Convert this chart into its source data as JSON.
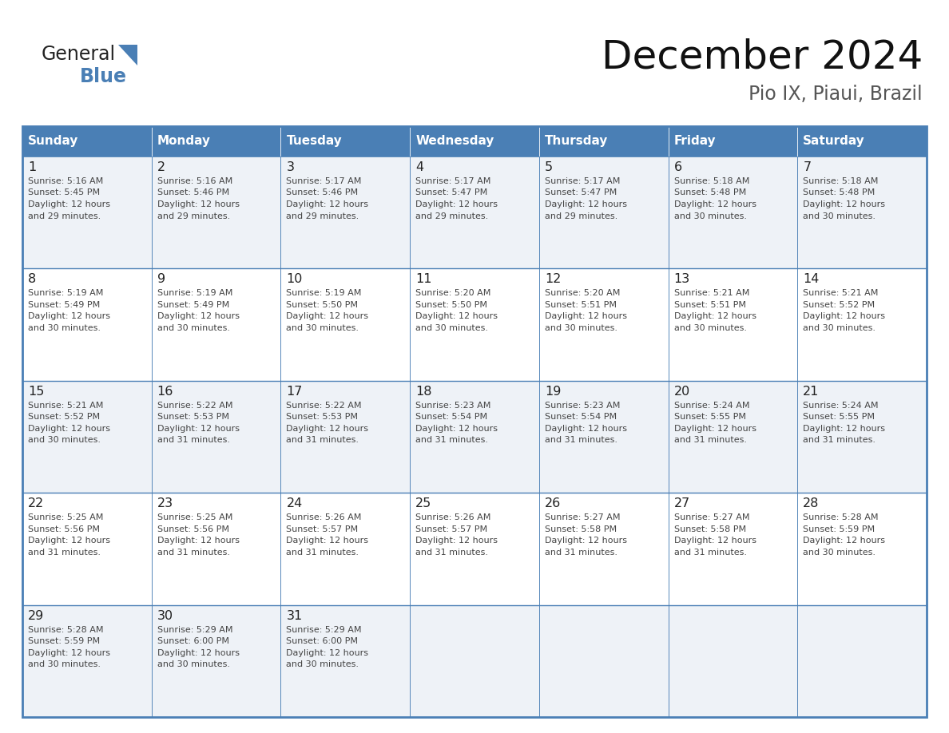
{
  "title": "December 2024",
  "subtitle": "Pio IX, Piaui, Brazil",
  "days_of_week": [
    "Sunday",
    "Monday",
    "Tuesday",
    "Wednesday",
    "Thursday",
    "Friday",
    "Saturday"
  ],
  "header_bg": "#4a7fb5",
  "header_text": "#ffffff",
  "border_color": "#4a7fb5",
  "cell_bg_even": "#eef2f7",
  "cell_bg_odd": "#ffffff",
  "day_number_color": "#222222",
  "cell_text_color": "#444444",
  "title_color": "#111111",
  "subtitle_color": "#555555",
  "logo_general_color": "#222222",
  "logo_blue_color": "#4a7fb5",
  "logo_triangle_color": "#4a7fb5",
  "calendar_data": [
    [
      {
        "day": 1,
        "sunrise": "5:16 AM",
        "sunset": "5:45 PM",
        "daylight_line1": "Daylight: 12 hours",
        "daylight_line2": "and 29 minutes."
      },
      {
        "day": 2,
        "sunrise": "5:16 AM",
        "sunset": "5:46 PM",
        "daylight_line1": "Daylight: 12 hours",
        "daylight_line2": "and 29 minutes."
      },
      {
        "day": 3,
        "sunrise": "5:17 AM",
        "sunset": "5:46 PM",
        "daylight_line1": "Daylight: 12 hours",
        "daylight_line2": "and 29 minutes."
      },
      {
        "day": 4,
        "sunrise": "5:17 AM",
        "sunset": "5:47 PM",
        "daylight_line1": "Daylight: 12 hours",
        "daylight_line2": "and 29 minutes."
      },
      {
        "day": 5,
        "sunrise": "5:17 AM",
        "sunset": "5:47 PM",
        "daylight_line1": "Daylight: 12 hours",
        "daylight_line2": "and 29 minutes."
      },
      {
        "day": 6,
        "sunrise": "5:18 AM",
        "sunset": "5:48 PM",
        "daylight_line1": "Daylight: 12 hours",
        "daylight_line2": "and 30 minutes."
      },
      {
        "day": 7,
        "sunrise": "5:18 AM",
        "sunset": "5:48 PM",
        "daylight_line1": "Daylight: 12 hours",
        "daylight_line2": "and 30 minutes."
      }
    ],
    [
      {
        "day": 8,
        "sunrise": "5:19 AM",
        "sunset": "5:49 PM",
        "daylight_line1": "Daylight: 12 hours",
        "daylight_line2": "and 30 minutes."
      },
      {
        "day": 9,
        "sunrise": "5:19 AM",
        "sunset": "5:49 PM",
        "daylight_line1": "Daylight: 12 hours",
        "daylight_line2": "and 30 minutes."
      },
      {
        "day": 10,
        "sunrise": "5:19 AM",
        "sunset": "5:50 PM",
        "daylight_line1": "Daylight: 12 hours",
        "daylight_line2": "and 30 minutes."
      },
      {
        "day": 11,
        "sunrise": "5:20 AM",
        "sunset": "5:50 PM",
        "daylight_line1": "Daylight: 12 hours",
        "daylight_line2": "and 30 minutes."
      },
      {
        "day": 12,
        "sunrise": "5:20 AM",
        "sunset": "5:51 PM",
        "daylight_line1": "Daylight: 12 hours",
        "daylight_line2": "and 30 minutes."
      },
      {
        "day": 13,
        "sunrise": "5:21 AM",
        "sunset": "5:51 PM",
        "daylight_line1": "Daylight: 12 hours",
        "daylight_line2": "and 30 minutes."
      },
      {
        "day": 14,
        "sunrise": "5:21 AM",
        "sunset": "5:52 PM",
        "daylight_line1": "Daylight: 12 hours",
        "daylight_line2": "and 30 minutes."
      }
    ],
    [
      {
        "day": 15,
        "sunrise": "5:21 AM",
        "sunset": "5:52 PM",
        "daylight_line1": "Daylight: 12 hours",
        "daylight_line2": "and 30 minutes."
      },
      {
        "day": 16,
        "sunrise": "5:22 AM",
        "sunset": "5:53 PM",
        "daylight_line1": "Daylight: 12 hours",
        "daylight_line2": "and 31 minutes."
      },
      {
        "day": 17,
        "sunrise": "5:22 AM",
        "sunset": "5:53 PM",
        "daylight_line1": "Daylight: 12 hours",
        "daylight_line2": "and 31 minutes."
      },
      {
        "day": 18,
        "sunrise": "5:23 AM",
        "sunset": "5:54 PM",
        "daylight_line1": "Daylight: 12 hours",
        "daylight_line2": "and 31 minutes."
      },
      {
        "day": 19,
        "sunrise": "5:23 AM",
        "sunset": "5:54 PM",
        "daylight_line1": "Daylight: 12 hours",
        "daylight_line2": "and 31 minutes."
      },
      {
        "day": 20,
        "sunrise": "5:24 AM",
        "sunset": "5:55 PM",
        "daylight_line1": "Daylight: 12 hours",
        "daylight_line2": "and 31 minutes."
      },
      {
        "day": 21,
        "sunrise": "5:24 AM",
        "sunset": "5:55 PM",
        "daylight_line1": "Daylight: 12 hours",
        "daylight_line2": "and 31 minutes."
      }
    ],
    [
      {
        "day": 22,
        "sunrise": "5:25 AM",
        "sunset": "5:56 PM",
        "daylight_line1": "Daylight: 12 hours",
        "daylight_line2": "and 31 minutes."
      },
      {
        "day": 23,
        "sunrise": "5:25 AM",
        "sunset": "5:56 PM",
        "daylight_line1": "Daylight: 12 hours",
        "daylight_line2": "and 31 minutes."
      },
      {
        "day": 24,
        "sunrise": "5:26 AM",
        "sunset": "5:57 PM",
        "daylight_line1": "Daylight: 12 hours",
        "daylight_line2": "and 31 minutes."
      },
      {
        "day": 25,
        "sunrise": "5:26 AM",
        "sunset": "5:57 PM",
        "daylight_line1": "Daylight: 12 hours",
        "daylight_line2": "and 31 minutes."
      },
      {
        "day": 26,
        "sunrise": "5:27 AM",
        "sunset": "5:58 PM",
        "daylight_line1": "Daylight: 12 hours",
        "daylight_line2": "and 31 minutes."
      },
      {
        "day": 27,
        "sunrise": "5:27 AM",
        "sunset": "5:58 PM",
        "daylight_line1": "Daylight: 12 hours",
        "daylight_line2": "and 31 minutes."
      },
      {
        "day": 28,
        "sunrise": "5:28 AM",
        "sunset": "5:59 PM",
        "daylight_line1": "Daylight: 12 hours",
        "daylight_line2": "and 30 minutes."
      }
    ],
    [
      {
        "day": 29,
        "sunrise": "5:28 AM",
        "sunset": "5:59 PM",
        "daylight_line1": "Daylight: 12 hours",
        "daylight_line2": "and 30 minutes."
      },
      {
        "day": 30,
        "sunrise": "5:29 AM",
        "sunset": "6:00 PM",
        "daylight_line1": "Daylight: 12 hours",
        "daylight_line2": "and 30 minutes."
      },
      {
        "day": 31,
        "sunrise": "5:29 AM",
        "sunset": "6:00 PM",
        "daylight_line1": "Daylight: 12 hours",
        "daylight_line2": "and 30 minutes."
      },
      null,
      null,
      null,
      null
    ]
  ]
}
